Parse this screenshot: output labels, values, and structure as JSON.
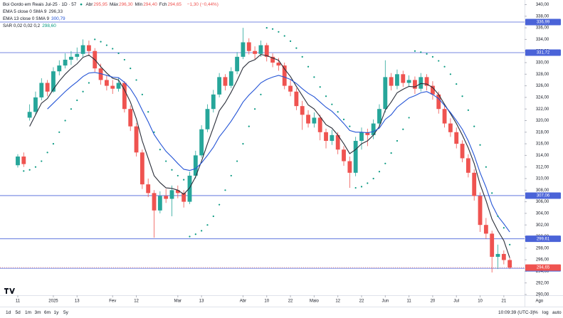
{
  "chart_data": {
    "type": "candlestick",
    "title": "Boi Gordo em Reais Jul-25 · 1D · 57",
    "ohlc": [
      {
        "name": "Abr",
        "text": "295,95"
      },
      {
        "name": "Máx",
        "text": "296,30"
      },
      {
        "name": "Mín",
        "text": "294,40"
      },
      {
        "name": "Fch",
        "text": "294,65"
      }
    ],
    "change": "−1,30 (−0,44%)",
    "up_color": "#26a69a",
    "down_color": "#ef5350",
    "candles": [
      [
        312.3,
        314.2,
        311.9,
        313.8
      ],
      [
        313.8,
        314.5,
        312.0,
        312.5
      ],
      [
        320.5,
        322.8,
        320.0,
        321.5
      ],
      [
        321.5,
        325.0,
        321.0,
        324.0
      ],
      [
        324.0,
        327.3,
        323.5,
        326.5
      ],
      [
        326.5,
        327.0,
        324.2,
        325.0
      ],
      [
        325.0,
        329.2,
        324.8,
        328.5
      ],
      [
        328.5,
        330.4,
        327.8,
        329.5
      ],
      [
        329.5,
        331.6,
        329.0,
        330.5
      ],
      [
        330.5,
        332.0,
        329.6,
        331.0
      ],
      [
        331.0,
        332.6,
        330.4,
        331.5
      ],
      [
        331.5,
        334.0,
        331.0,
        333.0
      ],
      [
        333.0,
        333.8,
        331.2,
        332.0
      ],
      [
        332.0,
        332.5,
        328.4,
        329.0
      ],
      [
        329.0,
        329.8,
        326.2,
        327.0
      ],
      [
        327.0,
        327.8,
        325.2,
        326.0
      ],
      [
        326.0,
        327.0,
        324.6,
        325.5
      ],
      [
        325.5,
        327.4,
        325.0,
        326.5
      ],
      [
        326.5,
        326.8,
        321.4,
        322.0
      ],
      [
        322.0,
        322.6,
        318.2,
        319.0
      ],
      [
        319.0,
        319.6,
        313.8,
        314.5
      ],
      [
        314.5,
        315.0,
        308.2,
        309.0
      ],
      [
        309.0,
        310.0,
        306.8,
        307.5
      ],
      [
        307.5,
        308.0,
        299.8,
        304.5
      ],
      [
        304.5,
        307.8,
        304.0,
        307.0
      ],
      [
        307.0,
        308.2,
        305.8,
        306.5
      ],
      [
        306.5,
        308.8,
        303.5,
        308.0
      ],
      [
        308.0,
        308.8,
        306.6,
        307.5
      ],
      [
        307.5,
        308.0,
        305.0,
        306.0
      ],
      [
        306.0,
        311.2,
        305.6,
        310.5
      ],
      [
        310.5,
        314.8,
        310.0,
        314.0
      ],
      [
        314.0,
        319.2,
        313.6,
        318.5
      ],
      [
        318.5,
        322.8,
        318.0,
        322.0
      ],
      [
        322.0,
        325.3,
        321.4,
        324.5
      ],
      [
        324.5,
        328.2,
        324.0,
        327.5
      ],
      [
        327.5,
        328.0,
        325.2,
        326.0
      ],
      [
        326.0,
        329.2,
        325.6,
        328.5
      ],
      [
        328.5,
        331.8,
        328.0,
        331.0
      ],
      [
        331.0,
        336.0,
        330.6,
        333.5
      ],
      [
        333.5,
        334.2,
        331.4,
        332.0
      ],
      [
        332.0,
        332.8,
        330.6,
        331.5
      ],
      [
        331.5,
        333.8,
        331.0,
        333.0
      ],
      [
        333.0,
        333.4,
        330.2,
        331.0
      ],
      [
        331.0,
        331.6,
        329.2,
        330.0
      ],
      [
        330.0,
        330.8,
        328.6,
        329.5
      ],
      [
        329.5,
        330.0,
        325.4,
        326.0
      ],
      [
        326.0,
        327.0,
        324.2,
        325.0
      ],
      [
        325.0,
        325.6,
        321.8,
        322.5
      ],
      [
        322.5,
        323.4,
        318.4,
        321.0
      ],
      [
        321.0,
        321.8,
        318.8,
        319.5
      ],
      [
        319.5,
        321.4,
        318.8,
        320.5
      ],
      [
        320.5,
        321.0,
        316.6,
        318.0
      ],
      [
        318.0,
        318.6,
        315.2,
        316.5
      ],
      [
        316.5,
        318.4,
        315.8,
        317.5
      ],
      [
        317.5,
        318.0,
        314.2,
        315.0
      ],
      [
        315.0,
        315.6,
        312.2,
        313.0
      ],
      [
        313.0,
        313.8,
        308.4,
        311.0
      ],
      [
        311.0,
        317.2,
        310.4,
        316.5
      ],
      [
        316.5,
        318.8,
        315.0,
        318.0
      ],
      [
        318.0,
        318.6,
        315.6,
        317.5
      ],
      [
        317.5,
        320.2,
        316.8,
        319.5
      ],
      [
        319.5,
        322.8,
        319.0,
        322.0
      ],
      [
        322.0,
        330.4,
        321.4,
        327.5
      ],
      [
        327.5,
        328.2,
        325.2,
        326.0
      ],
      [
        326.0,
        328.8,
        325.4,
        328.0
      ],
      [
        328.0,
        328.6,
        325.8,
        326.5
      ],
      [
        326.5,
        327.8,
        325.8,
        327.0
      ],
      [
        327.0,
        327.6,
        324.6,
        325.5
      ],
      [
        325.5,
        328.2,
        325.0,
        327.5
      ],
      [
        327.5,
        328.0,
        325.2,
        326.0
      ],
      [
        326.0,
        326.8,
        323.6,
        324.5
      ],
      [
        324.5,
        325.0,
        321.2,
        322.0
      ],
      [
        322.0,
        322.6,
        318.8,
        319.5
      ],
      [
        319.5,
        320.4,
        317.2,
        318.0
      ],
      [
        318.0,
        318.8,
        315.2,
        316.0
      ],
      [
        316.0,
        316.6,
        312.8,
        313.5
      ],
      [
        313.5,
        314.2,
        310.2,
        311.0
      ],
      [
        311.0,
        311.6,
        306.2,
        307.0
      ],
      [
        307.0,
        307.6,
        300.8,
        302.0
      ],
      [
        302.0,
        303.2,
        299.6,
        300.5
      ],
      [
        300.5,
        301.0,
        293.8,
        296.5
      ],
      [
        296.5,
        298.6,
        294.4,
        297.0
      ],
      [
        297.0,
        297.6,
        295.2,
        295.95
      ],
      [
        295.95,
        296.3,
        294.4,
        294.65
      ]
    ],
    "series": [
      {
        "name": "EMA 5 close 0 SMA 9",
        "last_label": "296,33",
        "color": "#2a2e39",
        "style": "line",
        "values": [
          null,
          null,
          319.0,
          321.0,
          323.0,
          323.8,
          325.4,
          326.8,
          328.0,
          329.0,
          329.8,
          330.9,
          331.3,
          330.5,
          329.3,
          328.2,
          327.3,
          327.0,
          325.3,
          323.2,
          320.3,
          316.5,
          313.5,
          310.5,
          309.3,
          308.4,
          308.3,
          308.0,
          307.3,
          308.4,
          310.3,
          313.0,
          316.0,
          318.8,
          321.7,
          323.1,
          324.9,
          326.9,
          329.1,
          330.1,
          330.5,
          331.4,
          331.2,
          330.8,
          330.4,
          328.9,
          327.6,
          325.9,
          324.3,
          322.7,
          322.0,
          320.7,
          319.3,
          318.7,
          317.5,
          316.0,
          314.3,
          315.0,
          316.0,
          316.5,
          317.5,
          319.0,
          321.8,
          323.2,
          324.8,
          325.4,
          325.9,
          325.8,
          326.4,
          326.3,
          325.7,
          324.5,
          322.8,
          321.2,
          319.5,
          317.5,
          315.3,
          312.6,
          309.0,
          306.2,
          303.0,
          301.0,
          299.3,
          296.33
        ]
      },
      {
        "name": "EMA 13 close 0 SMA 9",
        "last_label": "300,79",
        "color": "#2454d6",
        "style": "line",
        "values": [
          null,
          null,
          null,
          null,
          null,
          322.0,
          323.0,
          324.0,
          325.0,
          325.9,
          326.7,
          327.6,
          328.2,
          328.3,
          328.1,
          327.8,
          327.5,
          327.4,
          326.6,
          325.5,
          323.9,
          321.8,
          319.8,
          317.6,
          316.1,
          314.7,
          313.7,
          312.6,
          311.6,
          311.4,
          311.7,
          312.7,
          314.0,
          315.4,
          317.2,
          318.5,
          319.9,
          321.5,
          323.2,
          324.4,
          325.4,
          326.5,
          327.1,
          327.5,
          327.8,
          327.5,
          327.1,
          326.4,
          325.5,
          324.7,
          324.1,
          323.2,
          322.3,
          321.6,
          320.6,
          319.5,
          318.3,
          318.0,
          318.0,
          317.9,
          318.1,
          318.7,
          320.2,
          321.0,
          322.3,
          323.1,
          323.9,
          324.3,
          324.8,
          325.0,
          324.5,
          323.8,
          322.6,
          321.4,
          320.0,
          318.5,
          316.5,
          314.0,
          311.0,
          308.5,
          305.5,
          303.5,
          302.2,
          300.79
        ]
      },
      {
        "name": "SAR 0,02 0,02 0,2",
        "last_label": "298,60",
        "color": "#089981",
        "style": "dots",
        "values": [
          null,
          311.3,
          311.5,
          312.0,
          313.0,
          314.5,
          316.0,
          318.0,
          320.0,
          322.0,
          323.5,
          325.0,
          326.5,
          334.0,
          333.6,
          333.0,
          332.4,
          331.6,
          330.5,
          329.0,
          327.0,
          324.5,
          321.5,
          318.0,
          315.0,
          313.0,
          311.5,
          310.5,
          309.8,
          300.0,
          300.4,
          301.0,
          302.0,
          303.5,
          305.5,
          308.0,
          310.5,
          313.0,
          316.0,
          319.0,
          322.0,
          324.5,
          336.0,
          335.8,
          335.3,
          334.6,
          333.7,
          332.5,
          331.0,
          329.3,
          327.5,
          325.8,
          324.2,
          322.8,
          321.5,
          320.2,
          319.0,
          308.4,
          308.6,
          309.2,
          310.0,
          311.2,
          312.6,
          314.4,
          316.5,
          318.5,
          320.5,
          332.0,
          331.8,
          331.5,
          331.0,
          330.3,
          329.3,
          328.0,
          326.3,
          324.2,
          321.8,
          319.0,
          315.8,
          312.0,
          307.5,
          303.5,
          301.5,
          298.6
        ]
      }
    ],
    "levels": [
      {
        "value": 336.99,
        "label": "336,99"
      },
      {
        "value": 331.72,
        "label": "331,72"
      },
      {
        "value": 307.06,
        "label": "307,06"
      },
      {
        "value": 299.61,
        "label": "299,61"
      },
      {
        "value": 294.52,
        "label": "294,52"
      }
    ],
    "level_color": "#4a63d8",
    "last_price": {
      "value": 294.65,
      "label": "294,65"
    },
    "ylim": [
      290,
      340
    ],
    "yticks": [
      {
        "value": 290,
        "label": "290,00"
      },
      {
        "value": 292,
        "label": "292,00"
      },
      {
        "value": 294,
        "label": "294,00"
      },
      {
        "value": 296,
        "label": "296,00"
      },
      {
        "value": 298,
        "label": "298,00"
      },
      {
        "value": 300,
        "label": "300,00"
      },
      {
        "value": 302,
        "label": "302,00"
      },
      {
        "value": 304,
        "label": "304,00"
      },
      {
        "value": 306,
        "label": "306,00"
      },
      {
        "value": 308,
        "label": "308,00"
      },
      {
        "value": 310,
        "label": "310,00"
      },
      {
        "value": 312,
        "label": "312,00"
      },
      {
        "value": 314,
        "label": "314,00"
      },
      {
        "value": 316,
        "label": "316,00"
      },
      {
        "value": 318,
        "label": "318,00"
      },
      {
        "value": 320,
        "label": "320,00"
      },
      {
        "value": 322,
        "label": "322,00"
      },
      {
        "value": 324,
        "label": "324,00"
      },
      {
        "value": 326,
        "label": "326,00"
      },
      {
        "value": 328,
        "label": "328,00"
      },
      {
        "value": 330,
        "label": "330,00"
      },
      {
        "value": 332,
        "label": "332,00"
      },
      {
        "value": 334,
        "label": "334,00"
      },
      {
        "value": 336,
        "label": "336,00"
      },
      {
        "value": 338,
        "label": "338,00"
      },
      {
        "value": 340,
        "label": "340,00"
      }
    ],
    "xlim": [
      -3,
      85.5
    ],
    "xticks": [
      {
        "value": 0,
        "label": "11"
      },
      {
        "value": 6,
        "label": "2025"
      },
      {
        "value": 10,
        "label": "13"
      },
      {
        "value": 16,
        "label": "Fev"
      },
      {
        "value": 20,
        "label": "12"
      },
      {
        "value": 27,
        "label": "Mar"
      },
      {
        "value": 31,
        "label": "13"
      },
      {
        "value": 38,
        "label": "Abr"
      },
      {
        "value": 42,
        "label": "10"
      },
      {
        "value": 46,
        "label": "22"
      },
      {
        "value": 50,
        "label": "Maio"
      },
      {
        "value": 54,
        "label": "12"
      },
      {
        "value": 58,
        "label": "22"
      },
      {
        "value": 62,
        "label": "Jun"
      },
      {
        "value": 66,
        "label": "11"
      },
      {
        "value": 70,
        "label": "20"
      },
      {
        "value": 74,
        "label": "Jul"
      },
      {
        "value": 78,
        "label": "10"
      },
      {
        "value": 82,
        "label": "21"
      },
      {
        "value": 88,
        "label": "Ago"
      }
    ],
    "grid": false
  },
  "toolbar": {
    "ranges": [
      "1d",
      "5d",
      "1m",
      "3m",
      "6m",
      "1y",
      "5y"
    ],
    "clock": "10:09:39 (UTC-3)",
    "options": [
      "%",
      "log",
      "auto"
    ]
  }
}
